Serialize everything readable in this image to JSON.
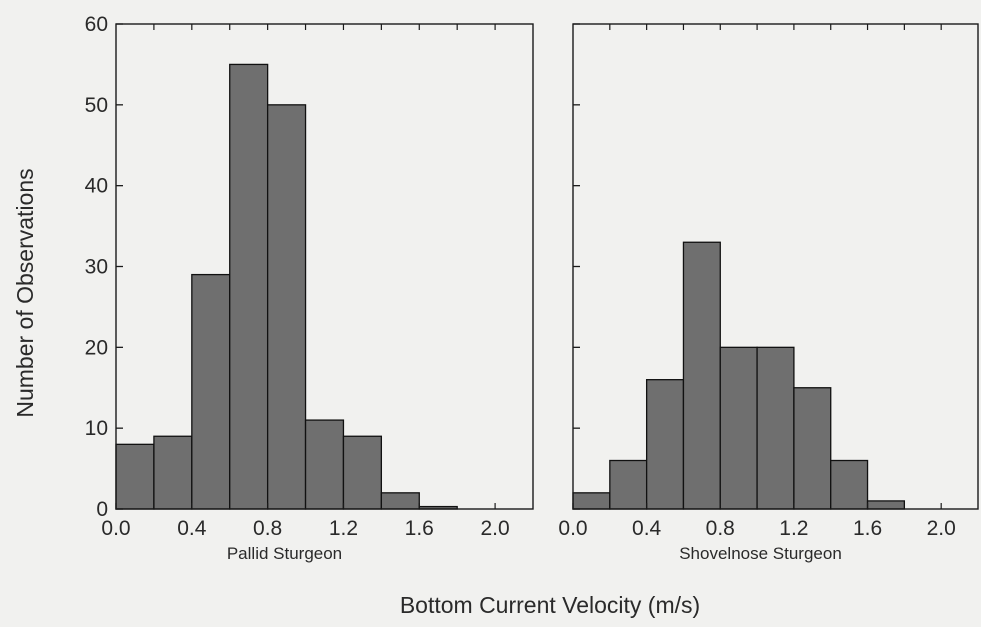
{
  "figure": {
    "ylabel": "Number of Observations",
    "xlabel": "Bottom Current Velocity (m/s)",
    "bar_color": "#6f6f6f",
    "background": "#f1f1ef"
  },
  "chart_data": [
    {
      "type": "bar",
      "title": "Pallid Sturgeon",
      "xlabel": "Bottom Current Velocity (m/s)",
      "ylabel": "Number of Observations",
      "bin_width": 0.2,
      "bin_starts": [
        0.0,
        0.2,
        0.4,
        0.6,
        0.8,
        1.0,
        1.2,
        1.4,
        1.6
      ],
      "values": [
        8,
        9,
        29,
        55,
        50,
        11,
        9,
        2,
        0.3
      ],
      "xlim": [
        0.0,
        2.2
      ],
      "ylim": [
        0,
        60
      ],
      "xticks": [
        "0.0",
        "0.4",
        "0.8",
        "1.2",
        "1.6",
        "2.0"
      ],
      "yticks": [
        "0",
        "10",
        "20",
        "30",
        "40",
        "50",
        "60"
      ]
    },
    {
      "type": "bar",
      "title": "Shovelnose Sturgeon",
      "xlabel": "Bottom Current Velocity (m/s)",
      "ylabel": "Number of Observations",
      "bin_width": 0.2,
      "bin_starts": [
        0.0,
        0.2,
        0.4,
        0.6,
        0.8,
        1.0,
        1.2,
        1.4,
        1.6
      ],
      "values": [
        2,
        6,
        16,
        33,
        20,
        20,
        15,
        6,
        1
      ],
      "xlim": [
        0.0,
        2.2
      ],
      "ylim": [
        0,
        60
      ],
      "xticks": [
        "0.0",
        "0.4",
        "0.8",
        "1.2",
        "1.6",
        "2.0"
      ],
      "yticks": []
    }
  ]
}
